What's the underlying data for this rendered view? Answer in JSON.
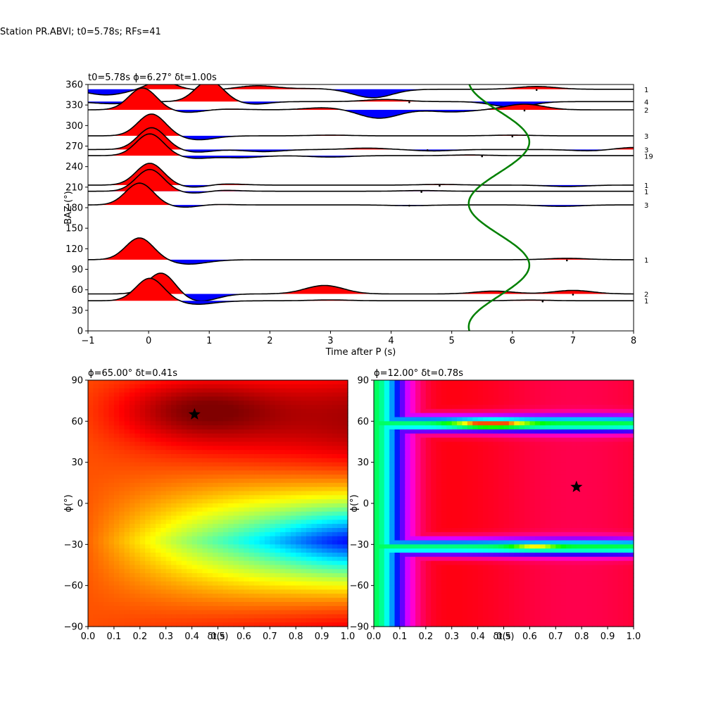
{
  "figure": {
    "suptitle": "Station PR.ABVI; t0=5.78s; RFs=41"
  },
  "chart_data": [
    {
      "type": "line",
      "title": "t0=5.78s ϕ=6.27° δt=1.00s",
      "xlabel": "Time after P (s)",
      "ylabel": "BAZ (°)",
      "xlim": [
        -1,
        8
      ],
      "ylim": [
        0,
        360
      ],
      "xticks": [
        -1,
        0,
        1,
        2,
        3,
        4,
        5,
        6,
        7,
        8
      ],
      "yticks": [
        0,
        30,
        60,
        90,
        120,
        150,
        180,
        210,
        240,
        270,
        300,
        330,
        360
      ],
      "traces": [
        {
          "baz": 44,
          "count": "1",
          "peak_t": 0.02,
          "peak_amp": 32,
          "wiggles": [
            [
              1.0,
              -1.5
            ],
            [
              3.0,
              1.2
            ],
            [
              6.3,
              1.0
            ]
          ],
          "dots": [
            6.5
          ]
        },
        {
          "baz": 54,
          "count": "2",
          "peak_t": 0.22,
          "peak_amp": 32,
          "wiggles": [
            [
              0.7,
              -8
            ],
            [
              2.9,
              12
            ],
            [
              5.7,
              4
            ],
            [
              7.0,
              5
            ]
          ],
          "dots": [
            7.0
          ]
        },
        {
          "baz": 104,
          "count": "1",
          "peak_t": -0.15,
          "peak_amp": 31,
          "wiggles": [
            [
              0.8,
              -3
            ],
            [
              6.9,
              2
            ]
          ],
          "dots": [
            6.9
          ]
        },
        {
          "baz": 184,
          "count": "3",
          "peak_t": -0.15,
          "peak_amp": 31,
          "wiggles": [
            [
              1.0,
              1
            ],
            [
              4.3,
              -1
            ],
            [
              6.8,
              -2
            ]
          ],
          "dots": [
            4.3
          ]
        },
        {
          "baz": 204,
          "count": "1",
          "peak_t": 0.02,
          "peak_amp": 31,
          "wiggles": [
            [
              1.1,
              2
            ],
            [
              4.5,
              1
            ]
          ],
          "dots": [
            4.5
          ]
        },
        {
          "baz": 213,
          "count": "1",
          "peak_t": 0.02,
          "peak_amp": 31,
          "wiggles": [
            [
              1.2,
              2
            ],
            [
              4.8,
              1
            ],
            [
              6.9,
              -2
            ]
          ],
          "dots": [
            4.8
          ]
        },
        {
          "baz": 256,
          "count": "19",
          "peak_t": 0.02,
          "peak_amp": 31,
          "wiggles": [
            [
              1.5,
              -3
            ],
            [
              3.0,
              -2
            ],
            [
              5.3,
              1
            ]
          ],
          "dots": [
            5.5
          ]
        },
        {
          "baz": 265,
          "count": "3",
          "peak_t": 0.05,
          "peak_amp": 31,
          "wiggles": [
            [
              1.9,
              -3
            ],
            [
              3.6,
              2
            ],
            [
              4.7,
              -2
            ],
            [
              7.3,
              -2
            ],
            [
              8.0,
              3
            ]
          ],
          "dots": [
            4.6
          ]
        },
        {
          "baz": 285,
          "count": "3",
          "peak_t": 0.05,
          "peak_amp": 31,
          "wiggles": [
            [
              0.9,
              -2
            ],
            [
              3.0,
              1
            ],
            [
              6.0,
              1
            ]
          ],
          "dots": [
            6.0
          ]
        },
        {
          "baz": 323,
          "count": "2",
          "peak_t": -0.1,
          "peak_amp": 31,
          "wiggles": [
            [
              1.3,
              1
            ],
            [
              2.9,
              3
            ],
            [
              3.8,
              -12
            ],
            [
              5.0,
              -3
            ],
            [
              6.2,
              8
            ]
          ],
          "dots": [
            6.2
          ]
        },
        {
          "baz": 335,
          "count": "4",
          "peak_t": 1.0,
          "peak_amp": 30,
          "wiggles": [
            [
              -0.6,
              -3
            ],
            [
              3.9,
              3
            ],
            [
              6.0,
              -8
            ]
          ],
          "dots": [
            4.3
          ]
        },
        {
          "baz": 353,
          "count": "1",
          "peak_t": 0.2,
          "peak_amp": 12,
          "wiggles": [
            [
              -0.7,
              -8
            ],
            [
              1.8,
              5
            ],
            [
              2.7,
              1
            ],
            [
              3.7,
              -12
            ],
            [
              6.4,
              4
            ]
          ],
          "dots": [
            6.4
          ]
        }
      ],
      "fit_curve": {
        "color": "#008000",
        "t0": 5.78,
        "amplitude": 0.5,
        "period_deg": 180,
        "phase_deg": 96
      }
    },
    {
      "type": "heatmap",
      "title": "ϕ=65.00° δt=0.41s",
      "xlabel": "δt(s)",
      "ylabel": "ϕ(°)",
      "xlim": [
        0,
        1
      ],
      "ylim": [
        -90,
        90
      ],
      "xticks": [
        0.0,
        0.1,
        0.2,
        0.3,
        0.4,
        0.5,
        0.6,
        0.7,
        0.8,
        0.9,
        1.0
      ],
      "yticks": [
        -90,
        -60,
        -30,
        0,
        30,
        60,
        90
      ],
      "colormap": "jet",
      "best": {
        "dt": 0.41,
        "phi": 65
      }
    },
    {
      "type": "heatmap",
      "title": "ϕ=12.00° δt=0.78s",
      "xlabel": "δt(s)",
      "ylabel": "ϕ(°)",
      "xlim": [
        0,
        1
      ],
      "ylim": [
        -90,
        90
      ],
      "xticks": [
        0.0,
        0.1,
        0.2,
        0.3,
        0.4,
        0.5,
        0.6,
        0.7,
        0.8,
        0.9,
        1.0
      ],
      "yticks": [
        -90,
        -60,
        -30,
        0,
        30,
        60,
        90
      ],
      "colormap": "hsv",
      "best": {
        "dt": 0.78,
        "phi": 12
      }
    }
  ]
}
